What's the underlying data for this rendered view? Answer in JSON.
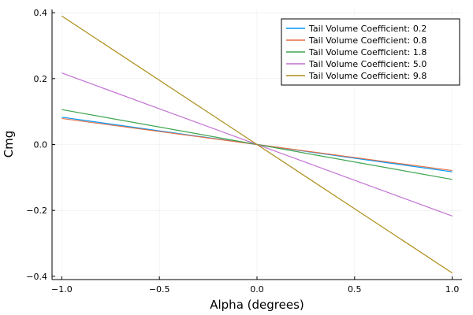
{
  "chart_data": {
    "type": "line",
    "title": "",
    "xlabel": "Alpha (degrees)",
    "ylabel": "Cmg",
    "xlim": [
      -1.05,
      1.05
    ],
    "ylim": [
      -0.41,
      0.41
    ],
    "xticks": [
      -1.0,
      -0.5,
      0.0,
      0.5,
      1.0
    ],
    "xtick_labels": [
      "−1.0",
      "−0.5",
      "0.0",
      "0.5",
      "1.0"
    ],
    "yticks": [
      -0.4,
      -0.2,
      0.0,
      0.2,
      0.4
    ],
    "ytick_labels": [
      "−0.4",
      "−0.2",
      "0.0",
      "0.2",
      "0.4"
    ],
    "grid": true,
    "legend_position": "top-right",
    "series": [
      {
        "name": "Tail Volume Coefficient: 0.2",
        "color": "#009AFA",
        "x": [
          -1.0,
          1.0
        ],
        "y": [
          0.083,
          -0.083
        ]
      },
      {
        "name": "Tail Volume Coefficient: 0.8",
        "color": "#E36F47",
        "x": [
          -1.0,
          1.0
        ],
        "y": [
          0.079,
          -0.079
        ]
      },
      {
        "name": "Tail Volume Coefficient: 1.8",
        "color": "#3EA44E",
        "x": [
          -1.0,
          1.0
        ],
        "y": [
          0.106,
          -0.106
        ]
      },
      {
        "name": "Tail Volume Coefficient: 5.0",
        "color": "#C271D2",
        "x": [
          -1.0,
          1.0
        ],
        "y": [
          0.217,
          -0.217
        ]
      },
      {
        "name": "Tail Volume Coefficient: 9.8",
        "color": "#AC8D18",
        "x": [
          -1.0,
          1.0
        ],
        "y": [
          0.39,
          -0.39
        ]
      }
    ]
  }
}
